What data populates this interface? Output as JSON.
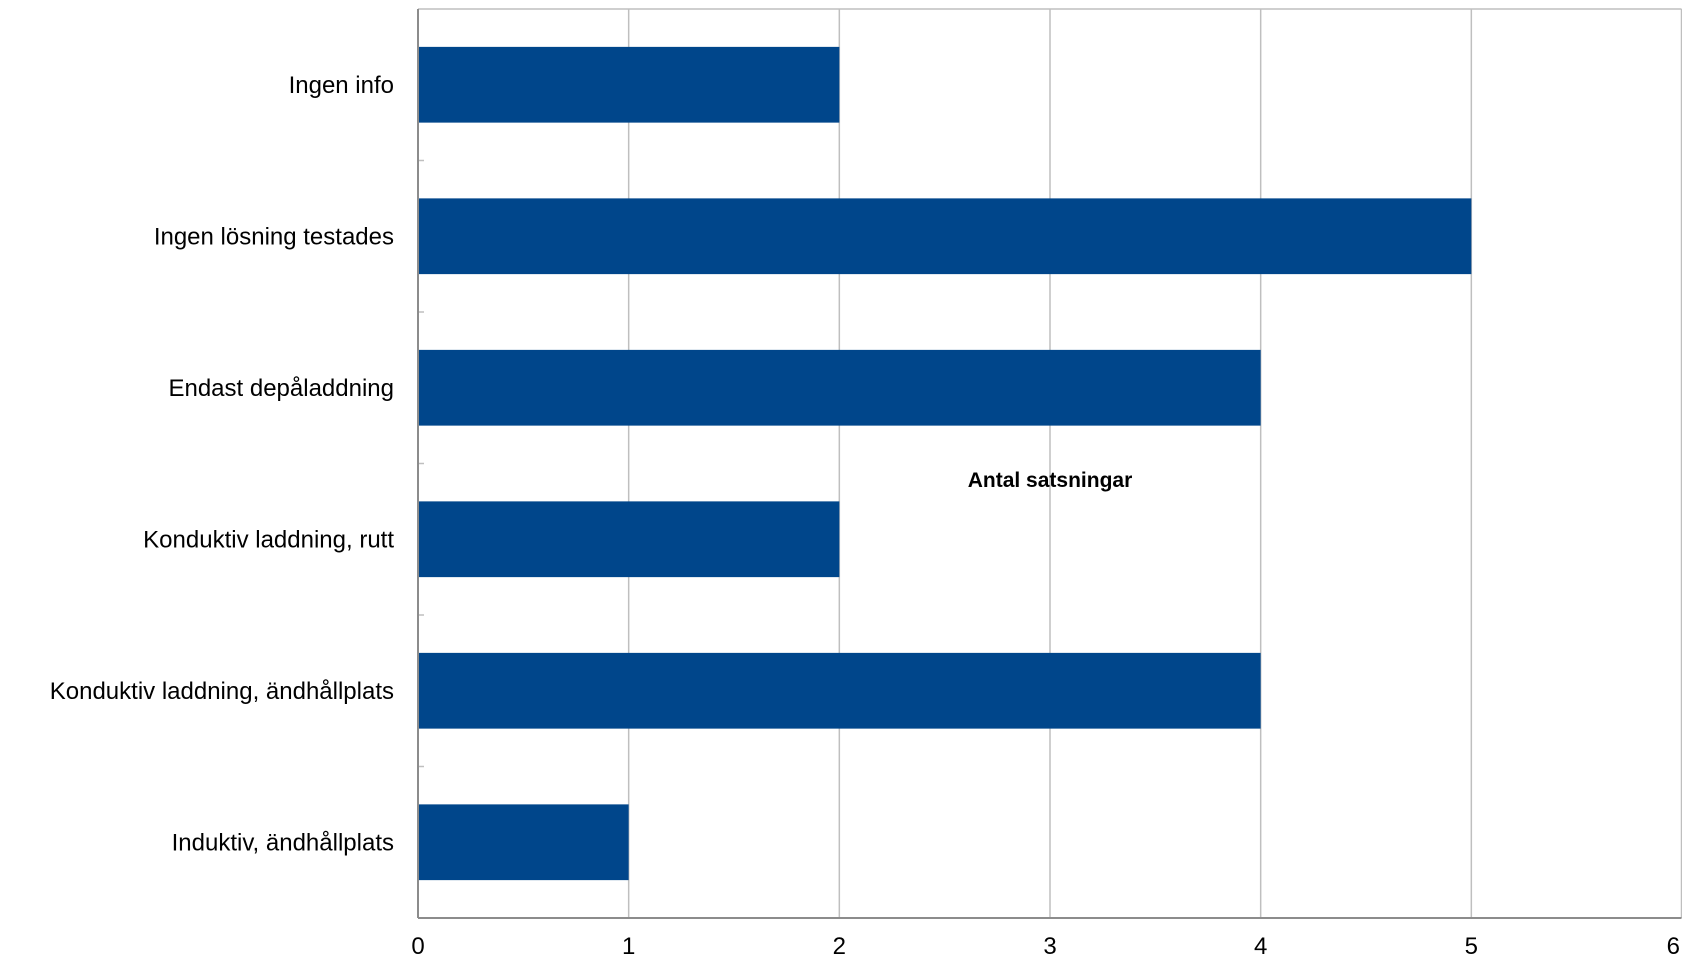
{
  "chart_data": {
    "type": "bar",
    "orientation": "horizontal",
    "categories": [
      "Ingen info",
      "Ingen lösning testades",
      "Endast depåladdning",
      "Konduktiv laddning, rutt",
      "Konduktiv laddning, ändhållplats",
      "Induktiv, ändhållplats"
    ],
    "values": [
      2,
      5,
      4,
      2,
      4,
      1
    ],
    "title": "",
    "xlabel": "Antal satsningar",
    "ylabel": "",
    "xlim": [
      0,
      6
    ],
    "x_ticks": [
      "0",
      "1",
      "2",
      "3",
      "4",
      "5",
      "6"
    ],
    "grid": "vertical",
    "legend": "none",
    "bar_color": "#00468B",
    "gridline_color": "#BFBFBF",
    "axis_color": "#8C8C8C"
  }
}
